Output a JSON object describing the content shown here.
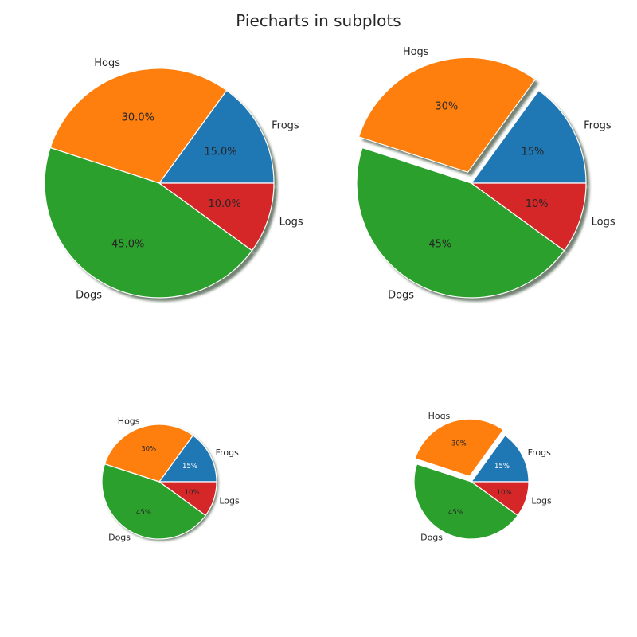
{
  "figure": {
    "suptitle": "Piecharts in subplots"
  },
  "chart_data": [
    {
      "type": "pie",
      "labels": [
        "Frogs",
        "Hogs",
        "Dogs",
        "Logs"
      ],
      "values": [
        15,
        30,
        45,
        10
      ],
      "autopct": [
        "15.0%",
        "30.0%",
        "45.0%",
        "10.0%"
      ],
      "colors": [
        "#1f77b4",
        "#ff7f0e",
        "#2ca02c",
        "#d62728"
      ],
      "explode": [
        0,
        0,
        0,
        0
      ],
      "shadow": true
    },
    {
      "type": "pie",
      "labels": [
        "Frogs",
        "Hogs",
        "Dogs",
        "Logs"
      ],
      "values": [
        15,
        30,
        45,
        10
      ],
      "autopct": [
        "15%",
        "30%",
        "45%",
        "10%"
      ],
      "colors": [
        "#1f77b4",
        "#ff7f0e",
        "#2ca02c",
        "#d62728"
      ],
      "explode": [
        0,
        0.1,
        0,
        0
      ],
      "shadow": true
    },
    {
      "type": "pie",
      "labels": [
        "Frogs",
        "Hogs",
        "Dogs",
        "Logs"
      ],
      "values": [
        15,
        30,
        45,
        10
      ],
      "autopct": [
        "15%",
        "30%",
        "45%",
        "10%"
      ],
      "colors": [
        "#1f77b4",
        "#ff7f0e",
        "#2ca02c",
        "#d62728"
      ],
      "pct_text_colors": [
        "#ffffff",
        "#262626",
        "#262626",
        "#262626"
      ],
      "explode": [
        0,
        0,
        0,
        0
      ],
      "shadow": true
    },
    {
      "type": "pie",
      "labels": [
        "Frogs",
        "Hogs",
        "Dogs",
        "Logs"
      ],
      "values": [
        15,
        30,
        45,
        10
      ],
      "autopct": [
        "15%",
        "30%",
        "45%",
        "10%"
      ],
      "colors": [
        "#1f77b4",
        "#ff7f0e",
        "#2ca02c",
        "#d62728"
      ],
      "pct_text_colors": [
        "#ffffff",
        "#262626",
        "#262626",
        "#262626"
      ],
      "explode": [
        0,
        0.1,
        0,
        0
      ],
      "shadow": false
    }
  ]
}
